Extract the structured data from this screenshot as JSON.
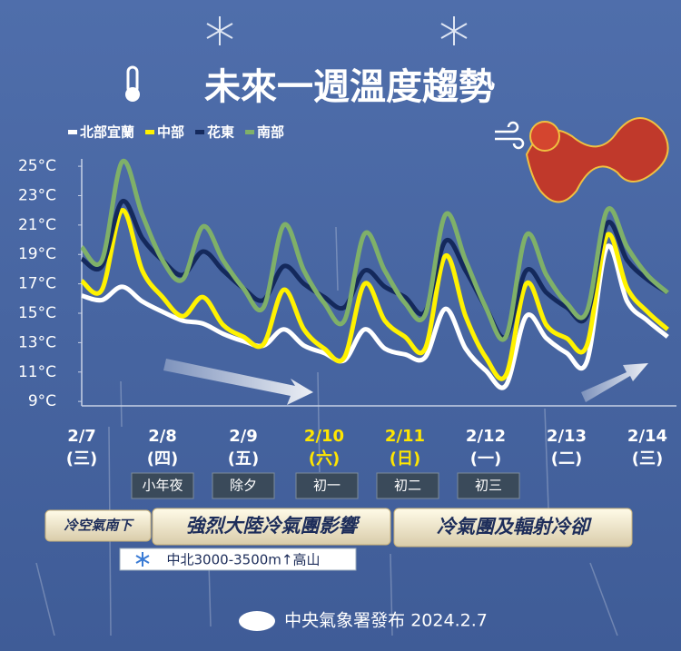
{
  "chart_data": {
    "type": "line",
    "title": "未來一週溫度趨勢",
    "x_ticks": [
      {
        "date": "2/7",
        "weekday": "(三)",
        "color": "#ffffff"
      },
      {
        "date": "2/8",
        "weekday": "(四)",
        "color": "#ffffff"
      },
      {
        "date": "2/9",
        "weekday": "(五)",
        "color": "#ffffff"
      },
      {
        "date": "2/10",
        "weekday": "(六)",
        "color": "#ffe600"
      },
      {
        "date": "2/11",
        "weekday": "(日)",
        "color": "#ffe600"
      },
      {
        "date": "2/12",
        "weekday": "(一)",
        "color": "#ffffff"
      },
      {
        "date": "2/13",
        "weekday": "(二)",
        "color": "#ffffff"
      },
      {
        "date": "2/14",
        "weekday": "(三)",
        "color": "#ffffff"
      }
    ],
    "ylim": [
      8.7,
      25.5
    ],
    "yticks": [
      {
        "value": 9,
        "label": "9°C"
      },
      {
        "value": 11,
        "label": "11°C"
      },
      {
        "value": 13,
        "label": "13°C"
      },
      {
        "value": 15,
        "label": "15°C"
      },
      {
        "value": 17,
        "label": "17°C"
      },
      {
        "value": 19,
        "label": "19°C"
      },
      {
        "value": 21,
        "label": "21°C"
      },
      {
        "value": 23,
        "label": "23°C"
      },
      {
        "value": 25,
        "label": "25°C"
      }
    ],
    "series": [
      {
        "name": "北部宜蘭",
        "color": "#ffffff",
        "values": [
          16.2,
          15.9,
          16.8,
          15.8,
          15.1,
          14.5,
          14.3,
          13.6,
          13.1,
          12.8,
          13.9,
          12.8,
          12.3,
          11.8,
          13.9,
          12.6,
          12.2,
          12.0,
          15.3,
          12.6,
          11.1,
          10.1,
          14.8,
          13.3,
          12.3,
          11.7,
          19.5,
          15.8,
          14.5,
          13.4
        ]
      },
      {
        "name": "中部",
        "color": "#fff200",
        "values": [
          17.2,
          16.6,
          22.0,
          17.9,
          16.1,
          14.8,
          16.1,
          14.2,
          13.4,
          12.9,
          16.6,
          13.9,
          12.6,
          12.0,
          17.0,
          14.5,
          13.4,
          12.6,
          18.9,
          14.8,
          12.0,
          10.8,
          17.0,
          14.2,
          13.3,
          12.8,
          20.3,
          16.7,
          15.1,
          13.9
        ]
      },
      {
        "name": "花東",
        "color": "#14295c",
        "values": [
          18.7,
          18.2,
          22.6,
          20.1,
          18.6,
          17.6,
          19.2,
          17.9,
          16.7,
          15.9,
          18.2,
          17.0,
          16.1,
          15.4,
          17.9,
          16.8,
          16.1,
          15.1,
          19.9,
          17.9,
          15.4,
          13.4,
          17.9,
          16.4,
          15.4,
          14.8,
          21.1,
          18.6,
          17.3,
          16.4
        ]
      },
      {
        "name": "南部",
        "color": "#7fb069",
        "values": [
          19.5,
          18.6,
          25.3,
          21.7,
          18.6,
          17.3,
          20.9,
          18.6,
          16.7,
          15.4,
          21.0,
          17.9,
          15.7,
          14.5,
          20.4,
          17.9,
          15.7,
          14.9,
          21.7,
          18.6,
          15.4,
          13.4,
          20.3,
          17.6,
          15.7,
          15.1,
          22.0,
          19.5,
          17.6,
          16.4
        ]
      }
    ],
    "annotations": [
      "小年夜",
      "除夕",
      "初一",
      "初二",
      "初三"
    ],
    "banners": [
      "冷空氣南下",
      "強烈大陸冷氣團影響",
      "冷氣團及輻射冷卻"
    ],
    "snow_note": "中北3000-3500m↑高山",
    "footer": "中央氣象署發布 2024.2.7"
  }
}
